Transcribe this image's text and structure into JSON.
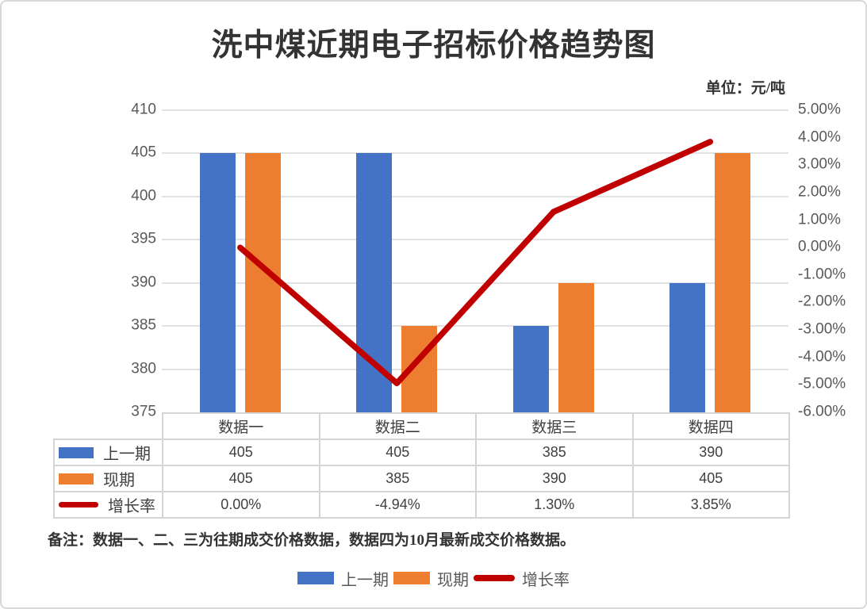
{
  "title": "洗中煤近期电子招标价格趋势图",
  "unit_label": "单位：元/吨",
  "note": "备注：数据一、二、三为往期成交价格数据，数据四为10月最新成交价格数据。",
  "colors": {
    "previous_period": "#4472C4",
    "current_period": "#ED7D31",
    "growth_rate": "#C00000",
    "gridline": "#E2E2E2",
    "axis_text": "#595959",
    "table_text": "#404040",
    "table_border": "#D4D4D4"
  },
  "chart_data": {
    "type": "bar+line-combo",
    "categories": [
      "数据一",
      "数据二",
      "数据三",
      "数据四"
    ],
    "series": [
      {
        "name": "上一期",
        "type": "bar",
        "axis": "primary",
        "color": "#4472C4",
        "values": [
          405,
          405,
          385,
          390
        ]
      },
      {
        "name": "现期",
        "type": "bar",
        "axis": "primary",
        "color": "#ED7D31",
        "values": [
          405,
          385,
          390,
          405
        ]
      },
      {
        "name": "增长率",
        "type": "line",
        "axis": "secondary",
        "color": "#C00000",
        "values": [
          0.0,
          -4.94,
          1.3,
          3.85
        ],
        "labels": [
          "0.00%",
          "-4.94%",
          "1.30%",
          "3.85%"
        ]
      }
    ],
    "primary_axis": {
      "min": 375,
      "max": 410,
      "step": 5,
      "ticks": [
        "410",
        "405",
        "400",
        "395",
        "390",
        "385",
        "380",
        "375"
      ]
    },
    "secondary_axis": {
      "min": -6,
      "max": 5,
      "step": 1,
      "ticks": [
        "5.00%",
        "4.00%",
        "3.00%",
        "2.00%",
        "1.00%",
        "0.00%",
        "-1.00%",
        "-2.00%",
        "-3.00%",
        "-4.00%",
        "-5.00%",
        "-6.00%"
      ]
    },
    "grid": true,
    "legend_position": "bottom",
    "data_table": {
      "header": [
        "数据一",
        "数据二",
        "数据三",
        "数据四"
      ],
      "rows": [
        {
          "label": "上一期",
          "swatch": "bar",
          "color": "#4472C4",
          "values": [
            "405",
            "405",
            "385",
            "390"
          ]
        },
        {
          "label": "现期",
          "swatch": "bar",
          "color": "#ED7D31",
          "values": [
            "405",
            "385",
            "390",
            "405"
          ]
        },
        {
          "label": "增长率",
          "swatch": "line",
          "color": "#C00000",
          "values": [
            "0.00%",
            "-4.94%",
            "1.30%",
            "3.85%"
          ]
        }
      ]
    }
  },
  "legend": {
    "items": [
      {
        "label": "上一期",
        "swatch": "bar",
        "color": "#4472C4"
      },
      {
        "label": "现期",
        "swatch": "bar",
        "color": "#ED7D31"
      },
      {
        "label": "增长率",
        "swatch": "line",
        "color": "#C00000"
      }
    ]
  }
}
